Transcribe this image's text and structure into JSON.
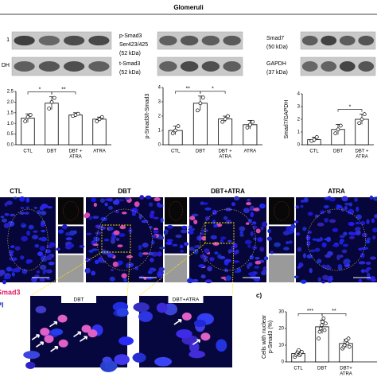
{
  "title": "Glomeruli",
  "blots": [
    {
      "top_label": [
        "1"
      ],
      "bottom_label": [
        "DH"
      ]
    },
    {
      "top_label": [
        "p-Smad3",
        "Ser423/425",
        "(52 kDa)"
      ],
      "bottom_label": [
        "t-Smad3",
        "(52 kDa)"
      ]
    },
    {
      "top_label": [
        "Smad7",
        "(50 kDa)"
      ],
      "bottom_label": [
        "GAPDH",
        "(37 kDa)"
      ]
    }
  ],
  "charts": [
    {
      "type": "bar",
      "ylabel": null,
      "categories": [
        [
          "CTL"
        ],
        [
          "DBT"
        ],
        [
          "DBT +",
          "ATRA"
        ],
        [
          "ATRA"
        ]
      ],
      "values": [
        1.25,
        1.95,
        1.4,
        1.2
      ],
      "errors": [
        0.2,
        0.3,
        0.1,
        0.1
      ],
      "points": [
        [
          1.1,
          1.3,
          1.4
        ],
        [
          1.7,
          2.0,
          2.2
        ],
        [
          1.35,
          1.4,
          1.45
        ],
        [
          1.1,
          1.2,
          1.3
        ]
      ],
      "significance": [
        "*",
        "**",
        null
      ],
      "ylim": [
        0,
        2.5
      ],
      "yticks": [
        {
          "value": 0,
          "label": "0.0"
        },
        {
          "value": 0.5,
          "label": "0.5"
        },
        {
          "value": 1,
          "label": "1.0"
        },
        {
          "value": 1.5,
          "label": "1.5"
        },
        {
          "value": 2,
          "label": "2.0"
        },
        {
          "value": 2.5,
          "label": "2.5"
        }
      ]
    },
    {
      "type": "bar",
      "ylabel": [
        "p-Smad3/t-Smad3"
      ],
      "categories": [
        [
          "CTL"
        ],
        [
          "DBT"
        ],
        [
          "DBT +",
          "ATRA"
        ],
        [
          "ATRA"
        ]
      ],
      "values": [
        1.0,
        2.9,
        1.8,
        1.4
      ],
      "errors": [
        0.3,
        0.5,
        0.2,
        0.3
      ],
      "points": [
        [
          0.8,
          1.0,
          1.3
        ],
        [
          2.4,
          2.9,
          3.3
        ],
        [
          1.6,
          1.8,
          2.0
        ],
        [
          1.2,
          1.4,
          1.6
        ]
      ],
      "significance": [
        "**",
        "*",
        null
      ],
      "ylim": [
        0,
        4
      ],
      "yticks": [
        0,
        1,
        2,
        3,
        4
      ]
    },
    {
      "type": "bar",
      "ylabel": [
        "Smad7/GAPDH"
      ],
      "categories": [
        [
          "CTL"
        ],
        [
          "DBT"
        ],
        [
          "DBT +",
          "ATRA"
        ]
      ],
      "values": [
        0.4,
        1.2,
        2.0
      ],
      "errors": [
        0.2,
        0.4,
        0.4
      ],
      "points": [
        [
          0.3,
          0.4,
          0.6
        ],
        [
          0.9,
          1.2,
          1.5
        ],
        [
          1.7,
          2.0,
          2.4
        ]
      ],
      "significance": [
        null,
        "*"
      ],
      "ylim": [
        0,
        4
      ],
      "yticks": [
        0,
        1,
        2,
        3,
        4
      ]
    },
    {
      "type": "bar",
      "ylabel": [
        "Cells with nuclear",
        "p-Smad3 (%)"
      ],
      "categories": [
        [
          "CTL"
        ],
        [
          "DBT"
        ],
        [
          "DBT+",
          "ATRA"
        ]
      ],
      "values": [
        5,
        21,
        11
      ],
      "errors": [
        1.5,
        4,
        2.5
      ],
      "points": [
        [
          3,
          4,
          5,
          6,
          7,
          4,
          5,
          6
        ],
        [
          14,
          18,
          20,
          22,
          24,
          26,
          19,
          23
        ],
        [
          8,
          9,
          10,
          12,
          13,
          11,
          14,
          9
        ]
      ],
      "significance": [
        "***",
        "**"
      ],
      "ylim": [
        0,
        30
      ],
      "yticks": [
        0,
        10,
        20,
        30
      ]
    }
  ],
  "micrographs": [
    "CTL",
    "DBT",
    "DBT+ATRA",
    "ATRA"
  ],
  "stain_labels": [
    "Smad3",
    "PI"
  ],
  "zoom_labels": [
    "DBT",
    "DBT+ATRA"
  ],
  "panel_label": "c)"
}
